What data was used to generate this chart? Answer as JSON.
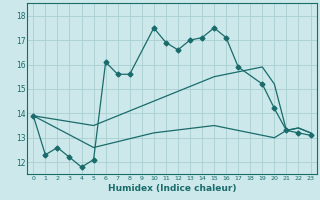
{
  "xlabel": "Humidex (Indice chaleur)",
  "xlim": [
    -0.5,
    23.5
  ],
  "ylim": [
    11.5,
    18.5
  ],
  "yticks": [
    12,
    13,
    14,
    15,
    16,
    17,
    18
  ],
  "xticks": [
    0,
    1,
    2,
    3,
    4,
    5,
    6,
    7,
    8,
    9,
    10,
    11,
    12,
    13,
    14,
    15,
    16,
    17,
    18,
    19,
    20,
    21,
    22,
    23
  ],
  "bg_color": "#cce8ea",
  "grid_color": "#aacfd2",
  "line_color": "#1a6b6b",
  "line1_x": [
    0,
    1,
    2,
    3,
    4,
    5,
    6,
    7,
    8,
    10,
    11,
    12,
    13,
    14,
    15,
    16,
    17,
    19,
    20,
    21,
    22,
    23
  ],
  "line1_y": [
    13.9,
    12.3,
    12.6,
    12.2,
    11.8,
    12.1,
    16.1,
    15.6,
    15.6,
    17.5,
    16.9,
    16.6,
    17.0,
    17.1,
    17.5,
    17.1,
    15.9,
    15.2,
    14.2,
    13.3,
    13.2,
    13.1
  ],
  "line2_x": [
    0,
    5,
    10,
    15,
    19,
    20,
    21,
    22,
    23
  ],
  "line2_y": [
    13.9,
    13.5,
    14.5,
    15.5,
    15.9,
    15.2,
    13.3,
    13.4,
    13.2
  ],
  "line3_x": [
    0,
    5,
    10,
    15,
    19,
    20,
    21,
    22,
    23
  ],
  "line3_y": [
    13.9,
    12.6,
    13.2,
    13.5,
    13.1,
    13.0,
    13.3,
    13.4,
    13.2
  ]
}
